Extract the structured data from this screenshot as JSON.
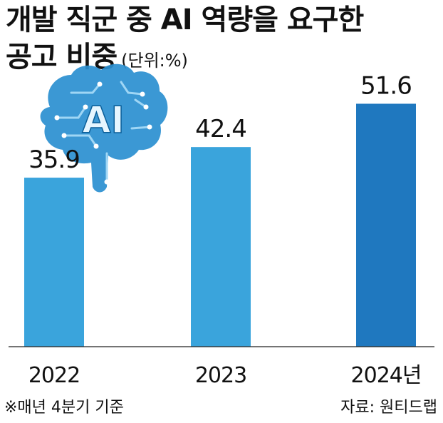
{
  "header": {
    "title_line1": "개발 직군 중 AI 역량을 요구한",
    "title_line2": "공고 비중",
    "unit": "(단위:%)"
  },
  "illustration": {
    "icon": "ai-brain-circuit-icon",
    "text": "AI",
    "color": "#2a8fd0"
  },
  "chart_data": {
    "type": "bar",
    "categories": [
      "2022",
      "2023",
      "2024년"
    ],
    "values": [
      35.9,
      42.4,
      51.6
    ],
    "value_labels": [
      "35.9",
      "42.4",
      "51.6"
    ],
    "title": "",
    "xlabel": "",
    "ylabel": "",
    "ylim": [
      0,
      60
    ],
    "grid": false,
    "colors": [
      "#3aa4dc",
      "#3aa4dc",
      "#1f78bf"
    ]
  },
  "footer": {
    "note": "※매년 4분기 기준",
    "source": "자료: 원티드랩"
  }
}
